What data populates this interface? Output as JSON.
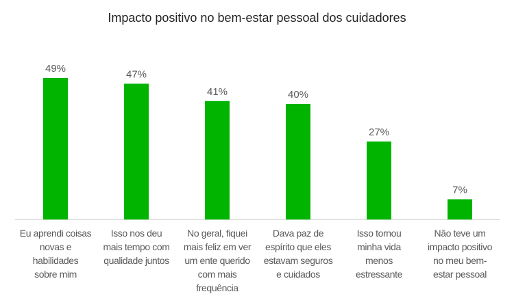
{
  "chart_data": {
    "type": "bar",
    "title": "Impacto positivo no bem-estar pessoal dos cuidadores",
    "categories": [
      [
        "Eu aprendi coisas",
        "novas e",
        "habilidades",
        "sobre mim"
      ],
      [
        "Isso nos deu",
        "mais tempo com",
        "qualidade juntos"
      ],
      [
        "No geral, fiquei",
        "mais feliz em ver",
        "um ente querido",
        "com mais",
        "frequência"
      ],
      [
        "Dava paz de",
        "espírito que eles",
        "estavam seguros",
        "e cuidados"
      ],
      [
        "Isso tornou",
        "minha vida",
        "menos",
        "estressante"
      ],
      [
        "Não teve um",
        "impacto positivo",
        "no meu bem-",
        "estar pessoal"
      ]
    ],
    "values": [
      49,
      47,
      41,
      40,
      27,
      7
    ],
    "data_labels": [
      "49%",
      "47%",
      "41%",
      "40%",
      "27%",
      "7%"
    ],
    "ylim": [
      0,
      55
    ],
    "grid": false,
    "bar_color": "#00B400",
    "axis_color": "#D9D9D9"
  }
}
